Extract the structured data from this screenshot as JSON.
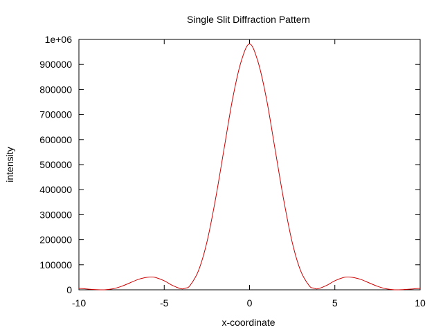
{
  "chart_data": {
    "type": "line",
    "title": "Single Slit Diffraction Pattern",
    "xlabel": "x-coordinate",
    "ylabel": "intensity",
    "xlim": [
      -10,
      10
    ],
    "ylim": [
      0,
      1000000
    ],
    "x_ticks": [
      -10,
      -5,
      0,
      5,
      10
    ],
    "x_tick_labels": [
      "-10",
      "-5",
      "0",
      "5",
      "10"
    ],
    "y_ticks": [
      0,
      100000,
      200000,
      300000,
      400000,
      500000,
      600000,
      700000,
      800000,
      900000,
      1000000
    ],
    "y_tick_labels": [
      "0",
      "100000",
      "200000",
      "300000",
      "400000",
      "500000",
      "600000",
      "700000",
      "800000",
      "900000",
      "1e+06"
    ],
    "grid": false,
    "legend": "none",
    "series_color": "#cc0000",
    "series": [
      {
        "x": [
          -10,
          -9.5,
          -9,
          -8.5,
          -8,
          -7.5,
          -7,
          -6.5,
          -6,
          -5.75,
          -5.5,
          -5,
          -4.5,
          -4,
          -3.75,
          -3.5,
          -3,
          -2.5,
          -2,
          -1.5,
          -1,
          -0.5,
          0,
          0.5,
          1,
          1.5,
          2,
          2.5,
          3,
          3.5,
          3.75,
          4,
          4.5,
          5,
          5.5,
          5.75,
          6,
          6.5,
          7,
          7.5,
          8,
          8.5,
          9,
          9.5,
          10
        ],
        "y": [
          6000,
          3000,
          800,
          0,
          4000,
          14000,
          28000,
          42000,
          50000,
          51000,
          49000,
          36000,
          17000,
          4000,
          7000,
          16000,
          75000,
          190000,
          360000,
          560000,
          760000,
          910000,
          982000,
          910000,
          760000,
          560000,
          360000,
          190000,
          75000,
          16000,
          7000,
          4000,
          17000,
          36000,
          49000,
          51000,
          50000,
          42000,
          28000,
          14000,
          4000,
          0,
          800,
          3000,
          6000
        ]
      }
    ]
  }
}
